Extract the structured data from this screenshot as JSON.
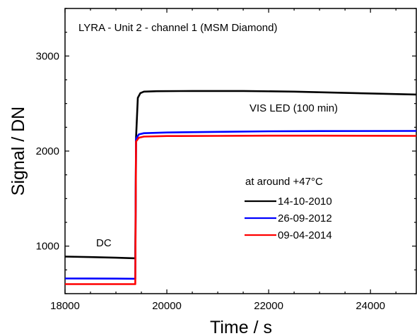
{
  "chart_data": {
    "type": "line",
    "title": "LYRA - Unit 2 - channel 1 (MSM Diamond)",
    "xlabel": "Time / s",
    "ylabel": "Signal / DN",
    "xlim": [
      18000,
      24900
    ],
    "ylim": [
      500,
      3500
    ],
    "xticks": [
      18000,
      20000,
      22000,
      24000
    ],
    "yticks": [
      1000,
      2000,
      3000
    ],
    "grid": false,
    "legend": {
      "title": "at around +47°C",
      "placement": "center-right"
    },
    "annotations": [
      "VIS LED (100 min)",
      "DC"
    ],
    "series": [
      {
        "name": "14-10-2010",
        "color": "#000000",
        "points": [
          [
            18000,
            890
          ],
          [
            18500,
            885
          ],
          [
            19000,
            878
          ],
          [
            19380,
            872
          ],
          [
            19395,
            2140
          ],
          [
            19430,
            2560
          ],
          [
            19480,
            2610
          ],
          [
            19550,
            2625
          ],
          [
            19800,
            2630
          ],
          [
            20500,
            2632
          ],
          [
            21500,
            2632
          ],
          [
            22500,
            2625
          ],
          [
            23500,
            2612
          ],
          [
            24900,
            2595
          ]
        ]
      },
      {
        "name": "26-09-2012",
        "color": "#0000ff",
        "points": [
          [
            18000,
            660
          ],
          [
            19000,
            658
          ],
          [
            19380,
            657
          ],
          [
            19395,
            2130
          ],
          [
            19450,
            2175
          ],
          [
            19550,
            2188
          ],
          [
            20000,
            2195
          ],
          [
            21000,
            2202
          ],
          [
            22000,
            2208
          ],
          [
            23000,
            2210
          ],
          [
            24900,
            2212
          ]
        ]
      },
      {
        "name": "09-04-2014",
        "color": "#ff0000",
        "points": [
          [
            18000,
            600
          ],
          [
            19000,
            600
          ],
          [
            19380,
            600
          ],
          [
            19395,
            2100
          ],
          [
            19450,
            2140
          ],
          [
            19550,
            2152
          ],
          [
            20000,
            2158
          ],
          [
            21000,
            2160
          ],
          [
            22000,
            2162
          ],
          [
            23000,
            2162
          ],
          [
            24900,
            2160
          ]
        ]
      }
    ]
  }
}
